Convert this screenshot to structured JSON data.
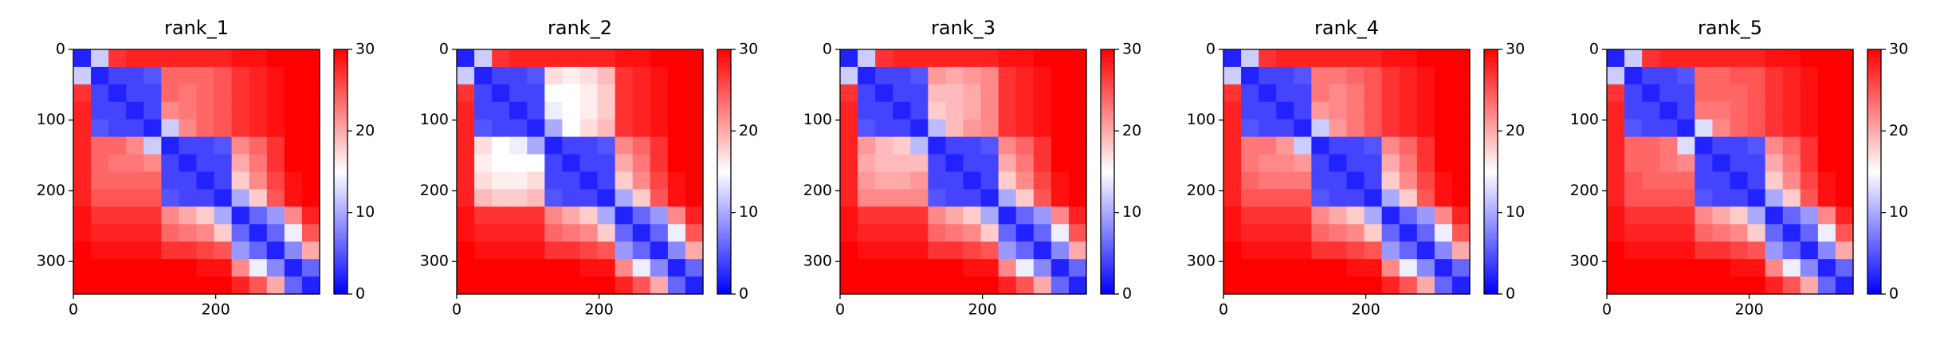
{
  "chart_data": [
    {
      "type": "heatmap",
      "title": "rank_1",
      "colors": [
        "#0000ff",
        "#ffffff",
        "#ff0000"
      ],
      "xlim": [
        0,
        346
      ],
      "ylim": [
        0,
        346
      ],
      "xticks": [
        0,
        200
      ],
      "yticks": [
        0,
        100,
        200,
        300
      ],
      "clim": [
        0,
        30
      ],
      "cticks": [
        0,
        10,
        20,
        30
      ],
      "matrix": [
        [
          2,
          12,
          27,
          28,
          28,
          28,
          28,
          28,
          28,
          29,
          29,
          30,
          30,
          30
        ],
        [
          12,
          2,
          4,
          4,
          5,
          24,
          24,
          24,
          25,
          27,
          28,
          29,
          30,
          30
        ],
        [
          27,
          4,
          2,
          4,
          4,
          24,
          23,
          24,
          25,
          27,
          28,
          29,
          30,
          30
        ],
        [
          28,
          4,
          4,
          2,
          4,
          22,
          23,
          24,
          25,
          27,
          28,
          29,
          30,
          30
        ],
        [
          28,
          5,
          4,
          4,
          2,
          12,
          22,
          24,
          25,
          27,
          28,
          29,
          30,
          30
        ],
        [
          28,
          24,
          24,
          22,
          12,
          2,
          4,
          4,
          5,
          22,
          24,
          27,
          30,
          30
        ],
        [
          28,
          24,
          23,
          23,
          22,
          4,
          2,
          4,
          4,
          20,
          23,
          27,
          30,
          30
        ],
        [
          28,
          24,
          24,
          24,
          24,
          4,
          4,
          2,
          4,
          18,
          22,
          26,
          29,
          30
        ],
        [
          28,
          25,
          25,
          25,
          25,
          5,
          4,
          4,
          2,
          10,
          18,
          25,
          29,
          30
        ],
        [
          29,
          27,
          27,
          27,
          27,
          22,
          20,
          18,
          10,
          2,
          6,
          9,
          22,
          28
        ],
        [
          29,
          28,
          28,
          28,
          28,
          24,
          23,
          22,
          18,
          6,
          2,
          6,
          14,
          25
        ],
        [
          30,
          29,
          29,
          29,
          29,
          27,
          27,
          26,
          25,
          9,
          6,
          2,
          8,
          20
        ],
        [
          30,
          30,
          30,
          30,
          30,
          30,
          30,
          29,
          29,
          22,
          14,
          8,
          2,
          6
        ],
        [
          30,
          30,
          30,
          30,
          30,
          30,
          30,
          30,
          30,
          28,
          25,
          20,
          6,
          2
        ]
      ]
    },
    {
      "type": "heatmap",
      "title": "rank_2",
      "colors": [
        "#0000ff",
        "#ffffff",
        "#ff0000"
      ],
      "xlim": [
        0,
        346
      ],
      "ylim": [
        0,
        346
      ],
      "xticks": [
        0,
        200
      ],
      "yticks": [
        0,
        100,
        200,
        300
      ],
      "clim": [
        0,
        30
      ],
      "cticks": [
        0,
        10,
        20,
        30
      ],
      "matrix": [
        [
          2,
          12,
          27,
          28,
          28,
          28,
          28,
          28,
          28,
          29,
          29,
          30,
          30,
          30
        ],
        [
          12,
          2,
          4,
          4,
          5,
          17,
          16,
          17,
          19,
          27,
          28,
          29,
          30,
          30
        ],
        [
          27,
          4,
          2,
          4,
          4,
          15,
          15,
          16,
          18,
          27,
          28,
          29,
          30,
          30
        ],
        [
          28,
          4,
          4,
          2,
          4,
          14,
          15,
          16,
          18,
          27,
          28,
          29,
          30,
          30
        ],
        [
          28,
          5,
          4,
          4,
          2,
          10,
          15,
          17,
          19,
          27,
          28,
          29,
          30,
          30
        ],
        [
          28,
          17,
          15,
          14,
          10,
          2,
          4,
          4,
          5,
          22,
          24,
          27,
          30,
          30
        ],
        [
          28,
          16,
          15,
          15,
          15,
          4,
          2,
          4,
          4,
          20,
          23,
          27,
          30,
          30
        ],
        [
          28,
          17,
          16,
          16,
          17,
          4,
          4,
          2,
          4,
          18,
          22,
          26,
          29,
          30
        ],
        [
          28,
          19,
          18,
          18,
          19,
          5,
          4,
          4,
          2,
          10,
          18,
          25,
          29,
          30
        ],
        [
          29,
          27,
          27,
          27,
          27,
          22,
          20,
          18,
          10,
          2,
          6,
          9,
          22,
          28
        ],
        [
          29,
          28,
          28,
          28,
          28,
          24,
          23,
          22,
          18,
          6,
          2,
          6,
          14,
          25
        ],
        [
          30,
          29,
          29,
          29,
          29,
          27,
          27,
          26,
          25,
          9,
          6,
          2,
          8,
          20
        ],
        [
          30,
          30,
          30,
          30,
          30,
          30,
          30,
          29,
          29,
          22,
          14,
          8,
          2,
          6
        ],
        [
          30,
          30,
          30,
          30,
          30,
          30,
          30,
          30,
          30,
          28,
          25,
          20,
          6,
          2
        ]
      ]
    },
    {
      "type": "heatmap",
      "title": "rank_3",
      "colors": [
        "#0000ff",
        "#ffffff",
        "#ff0000"
      ],
      "xlim": [
        0,
        346
      ],
      "ylim": [
        0,
        346
      ],
      "xticks": [
        0,
        200
      ],
      "yticks": [
        0,
        100,
        200,
        300
      ],
      "clim": [
        0,
        30
      ],
      "cticks": [
        0,
        10,
        20,
        30
      ],
      "matrix": [
        [
          2,
          12,
          27,
          28,
          28,
          28,
          28,
          28,
          28,
          29,
          29,
          30,
          30,
          30
        ],
        [
          12,
          2,
          4,
          4,
          5,
          21,
          20,
          21,
          22,
          27,
          28,
          29,
          30,
          30
        ],
        [
          27,
          4,
          2,
          4,
          4,
          19,
          19,
          20,
          22,
          27,
          28,
          29,
          30,
          30
        ],
        [
          28,
          4,
          4,
          2,
          4,
          18,
          19,
          20,
          22,
          27,
          28,
          29,
          30,
          30
        ],
        [
          28,
          5,
          4,
          4,
          2,
          11,
          19,
          21,
          22,
          27,
          28,
          29,
          30,
          30
        ],
        [
          28,
          21,
          19,
          18,
          11,
          2,
          4,
          4,
          5,
          22,
          24,
          27,
          30,
          30
        ],
        [
          28,
          20,
          19,
          19,
          19,
          4,
          2,
          4,
          4,
          20,
          23,
          27,
          30,
          30
        ],
        [
          28,
          21,
          20,
          20,
          21,
          4,
          4,
          2,
          4,
          18,
          22,
          26,
          29,
          30
        ],
        [
          28,
          22,
          22,
          22,
          22,
          5,
          4,
          4,
          2,
          10,
          18,
          25,
          29,
          30
        ],
        [
          29,
          27,
          27,
          27,
          27,
          22,
          20,
          18,
          10,
          2,
          6,
          9,
          22,
          28
        ],
        [
          29,
          28,
          28,
          28,
          28,
          24,
          23,
          22,
          18,
          6,
          2,
          6,
          14,
          25
        ],
        [
          30,
          29,
          29,
          29,
          29,
          27,
          27,
          26,
          25,
          9,
          6,
          2,
          8,
          20
        ],
        [
          30,
          30,
          30,
          30,
          30,
          30,
          30,
          29,
          29,
          22,
          14,
          8,
          2,
          6
        ],
        [
          30,
          30,
          30,
          30,
          30,
          30,
          30,
          30,
          30,
          28,
          25,
          20,
          6,
          2
        ]
      ]
    },
    {
      "type": "heatmap",
      "title": "rank_4",
      "colors": [
        "#0000ff",
        "#ffffff",
        "#ff0000"
      ],
      "xlim": [
        0,
        346
      ],
      "ylim": [
        0,
        346
      ],
      "xticks": [
        0,
        200
      ],
      "yticks": [
        0,
        100,
        200,
        300
      ],
      "clim": [
        0,
        30
      ],
      "cticks": [
        0,
        10,
        20,
        30
      ],
      "matrix": [
        [
          2,
          12,
          27,
          28,
          28,
          28,
          28,
          28,
          28,
          29,
          29,
          30,
          30,
          30
        ],
        [
          12,
          2,
          4,
          4,
          5,
          23,
          23,
          24,
          25,
          27,
          28,
          29,
          30,
          30
        ],
        [
          27,
          4,
          2,
          4,
          4,
          23,
          22,
          23,
          25,
          27,
          28,
          29,
          30,
          30
        ],
        [
          28,
          4,
          4,
          2,
          4,
          21,
          22,
          23,
          25,
          27,
          28,
          29,
          30,
          30
        ],
        [
          28,
          5,
          4,
          4,
          2,
          12,
          21,
          23,
          25,
          27,
          28,
          29,
          30,
          30
        ],
        [
          28,
          23,
          23,
          21,
          12,
          2,
          4,
          4,
          5,
          22,
          24,
          27,
          30,
          30
        ],
        [
          28,
          23,
          22,
          22,
          21,
          4,
          2,
          4,
          4,
          20,
          23,
          27,
          30,
          30
        ],
        [
          28,
          24,
          23,
          23,
          23,
          4,
          4,
          2,
          4,
          18,
          22,
          26,
          29,
          30
        ],
        [
          28,
          25,
          25,
          25,
          25,
          5,
          4,
          4,
          2,
          10,
          18,
          25,
          29,
          30
        ],
        [
          29,
          27,
          27,
          27,
          27,
          22,
          20,
          18,
          10,
          2,
          6,
          9,
          22,
          28
        ],
        [
          29,
          28,
          28,
          28,
          28,
          24,
          23,
          22,
          18,
          6,
          2,
          6,
          14,
          25
        ],
        [
          30,
          29,
          29,
          29,
          29,
          27,
          27,
          26,
          25,
          9,
          6,
          2,
          8,
          20
        ],
        [
          30,
          30,
          30,
          30,
          30,
          30,
          30,
          29,
          29,
          22,
          14,
          8,
          2,
          6
        ],
        [
          30,
          30,
          30,
          30,
          30,
          30,
          30,
          30,
          30,
          28,
          25,
          20,
          6,
          2
        ]
      ]
    },
    {
      "type": "heatmap",
      "title": "rank_5",
      "colors": [
        "#0000ff",
        "#ffffff",
        "#ff0000"
      ],
      "xlim": [
        0,
        346
      ],
      "ylim": [
        0,
        346
      ],
      "xticks": [
        0,
        200
      ],
      "yticks": [
        0,
        100,
        200,
        300
      ],
      "clim": [
        0,
        30
      ],
      "cticks": [
        0,
        10,
        20,
        30
      ],
      "matrix": [
        [
          2,
          12,
          27,
          28,
          28,
          28,
          28,
          28,
          28,
          29,
          29,
          30,
          30,
          30
        ],
        [
          12,
          2,
          4,
          4,
          5,
          24,
          24,
          25,
          25,
          27,
          28,
          29,
          30,
          30
        ],
        [
          27,
          4,
          2,
          4,
          4,
          24,
          24,
          24,
          25,
          27,
          28,
          29,
          30,
          30
        ],
        [
          28,
          4,
          4,
          2,
          4,
          23,
          23,
          24,
          25,
          27,
          28,
          29,
          30,
          30
        ],
        [
          28,
          5,
          4,
          4,
          2,
          13,
          22,
          24,
          25,
          27,
          28,
          29,
          30,
          30
        ],
        [
          28,
          24,
          24,
          23,
          13,
          2,
          4,
          4,
          5,
          22,
          24,
          27,
          30,
          30
        ],
        [
          28,
          24,
          24,
          23,
          22,
          4,
          2,
          4,
          4,
          20,
          23,
          27,
          30,
          30
        ],
        [
          28,
          25,
          24,
          24,
          24,
          4,
          4,
          2,
          4,
          18,
          22,
          26,
          29,
          30
        ],
        [
          28,
          25,
          25,
          25,
          25,
          5,
          4,
          4,
          2,
          10,
          18,
          25,
          29,
          30
        ],
        [
          29,
          27,
          27,
          27,
          27,
          22,
          20,
          18,
          10,
          2,
          6,
          9,
          22,
          28
        ],
        [
          29,
          28,
          28,
          28,
          28,
          24,
          23,
          22,
          18,
          6,
          2,
          6,
          14,
          25
        ],
        [
          30,
          29,
          29,
          29,
          29,
          27,
          27,
          26,
          25,
          9,
          6,
          2,
          8,
          20
        ],
        [
          30,
          30,
          30,
          30,
          30,
          30,
          30,
          29,
          29,
          22,
          14,
          8,
          2,
          6
        ],
        [
          30,
          30,
          30,
          30,
          30,
          30,
          30,
          30,
          30,
          28,
          25,
          20,
          6,
          2
        ]
      ]
    }
  ]
}
